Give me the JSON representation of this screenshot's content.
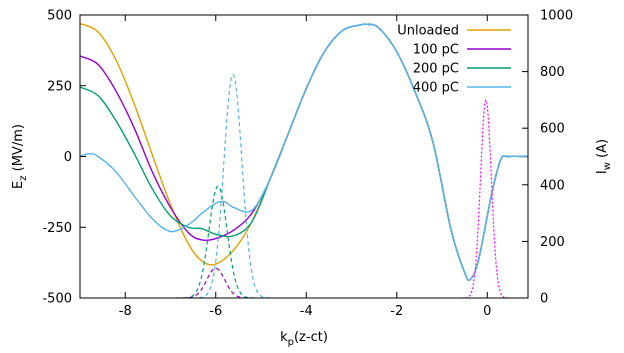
{
  "chart_data": {
    "type": "line",
    "title": "",
    "xlabel": {
      "main": "k",
      "sub": "p",
      "rest": "(z-ct)"
    },
    "ylabel_left": {
      "main": "E",
      "sub": "z",
      "rest": "  (MV/m)"
    },
    "ylabel_right": {
      "main": "I",
      "sub": "w",
      "rest": "  (A)"
    },
    "xlim": [
      -9,
      0.9
    ],
    "ylim_left": [
      -500,
      500
    ],
    "ylim_right": [
      0,
      1000
    ],
    "xticks": [
      -8,
      -6,
      -4,
      -2,
      0
    ],
    "xtick_labels": [
      "-8",
      "-6",
      "-4",
      "-2",
      "0"
    ],
    "yticks_left": [
      -500,
      -250,
      0,
      250,
      500
    ],
    "ytick_labels_left": [
      "-500",
      "-250",
      "0",
      "250",
      "500"
    ],
    "yticks_right": [
      0,
      200,
      400,
      600,
      800,
      1000
    ],
    "ytick_labels_right": [
      "0",
      "200",
      "400",
      "600",
      "800",
      "1000"
    ],
    "grid": false,
    "legend_position": "top-right",
    "series": [
      {
        "name": "Unloaded",
        "color": "#e69f00",
        "axis": "left",
        "style": "solid",
        "x": [
          -9.0,
          -8.6,
          -8.2,
          -7.8,
          -7.4,
          -7.0,
          -6.6,
          -6.3,
          -6.0,
          -5.6,
          -5.2,
          -4.8,
          -4.4,
          -4.0,
          -3.6,
          -3.2,
          -2.8,
          -2.65,
          -2.4,
          -2.0,
          -1.6,
          -1.2,
          -0.8,
          -0.5,
          -0.38,
          -0.2,
          0.1,
          0.3,
          0.45,
          0.9
        ],
        "y": [
          470,
          440,
          340,
          185,
          5,
          -170,
          -310,
          -370,
          -380,
          -330,
          -230,
          -80,
          80,
          240,
          370,
          445,
          465,
          467,
          455,
          370,
          230,
          50,
          -260,
          -410,
          -435,
          -370,
          -130,
          -10,
          0,
          0
        ]
      },
      {
        "name": "100 pC",
        "color": "#9400d3",
        "axis": "left",
        "style": "solid",
        "x": [
          -9.0,
          -8.6,
          -8.2,
          -7.8,
          -7.4,
          -7.0,
          -6.6,
          -6.3,
          -6.0,
          -5.6,
          -5.2,
          -4.8,
          -4.4,
          -4.0,
          -3.6,
          -3.2,
          -2.8,
          -2.65,
          -2.4,
          -2.0,
          -1.6,
          -1.2,
          -0.8,
          -0.5,
          -0.38,
          -0.2,
          0.1,
          0.3,
          0.45,
          0.9
        ],
        "y": [
          355,
          325,
          230,
          100,
          -55,
          -180,
          -270,
          -295,
          -290,
          -260,
          -200,
          -80,
          80,
          240,
          370,
          445,
          465,
          467,
          455,
          370,
          230,
          50,
          -260,
          -410,
          -435,
          -370,
          -130,
          -10,
          0,
          0
        ]
      },
      {
        "name": "200 pC",
        "color": "#009e73",
        "axis": "left",
        "style": "solid",
        "x": [
          -9.0,
          -8.6,
          -8.2,
          -7.8,
          -7.4,
          -7.0,
          -6.6,
          -6.3,
          -6.0,
          -5.6,
          -5.2,
          -4.8,
          -4.4,
          -4.0,
          -3.6,
          -3.2,
          -2.8,
          -2.65,
          -2.4,
          -2.0,
          -1.6,
          -1.2,
          -0.8,
          -0.5,
          -0.38,
          -0.2,
          0.1,
          0.3,
          0.45,
          0.9
        ],
        "y": [
          245,
          215,
          125,
          10,
          -115,
          -210,
          -250,
          -255,
          -275,
          -280,
          -230,
          -80,
          80,
          240,
          370,
          445,
          465,
          467,
          455,
          370,
          230,
          50,
          -260,
          -410,
          -435,
          -370,
          -130,
          -10,
          0,
          0
        ]
      },
      {
        "name": "400 pC",
        "color": "#56b4e9",
        "axis": "left",
        "style": "solid",
        "x": [
          -9.0,
          -8.8,
          -8.6,
          -8.2,
          -7.8,
          -7.4,
          -7.0,
          -6.6,
          -6.3,
          -6.0,
          -5.8,
          -5.6,
          -5.2,
          -4.8,
          -4.4,
          -4.0,
          -3.6,
          -3.2,
          -2.8,
          -2.65,
          -2.4,
          -2.0,
          -1.6,
          -1.2,
          -0.8,
          -0.5,
          -0.38,
          -0.2,
          0.1,
          0.3,
          0.45,
          0.9
        ],
        "y": [
          0,
          10,
          0,
          -55,
          -140,
          -220,
          -265,
          -240,
          -200,
          -165,
          -160,
          -180,
          -190,
          -80,
          80,
          240,
          370,
          445,
          465,
          467,
          455,
          370,
          230,
          50,
          -260,
          -410,
          -435,
          -370,
          -130,
          -10,
          0,
          0
        ]
      },
      {
        "name": "",
        "color": "#9400d3",
        "axis": "right",
        "style": "dashed",
        "center": -6.0,
        "peak": 105,
        "sigma": 0.2
      },
      {
        "name": "",
        "color": "#009e73",
        "axis": "right",
        "style": "dashed",
        "center": -5.95,
        "peak": 395,
        "sigma": 0.2
      },
      {
        "name": "",
        "color": "#56b4e9",
        "axis": "right",
        "style": "dashed",
        "center": -5.62,
        "peak": 790,
        "sigma": 0.2
      },
      {
        "name": "",
        "color": "#ff00ff",
        "axis": "right",
        "style": "dotted",
        "center": -0.03,
        "peak": 700,
        "sigma": 0.12
      }
    ]
  }
}
